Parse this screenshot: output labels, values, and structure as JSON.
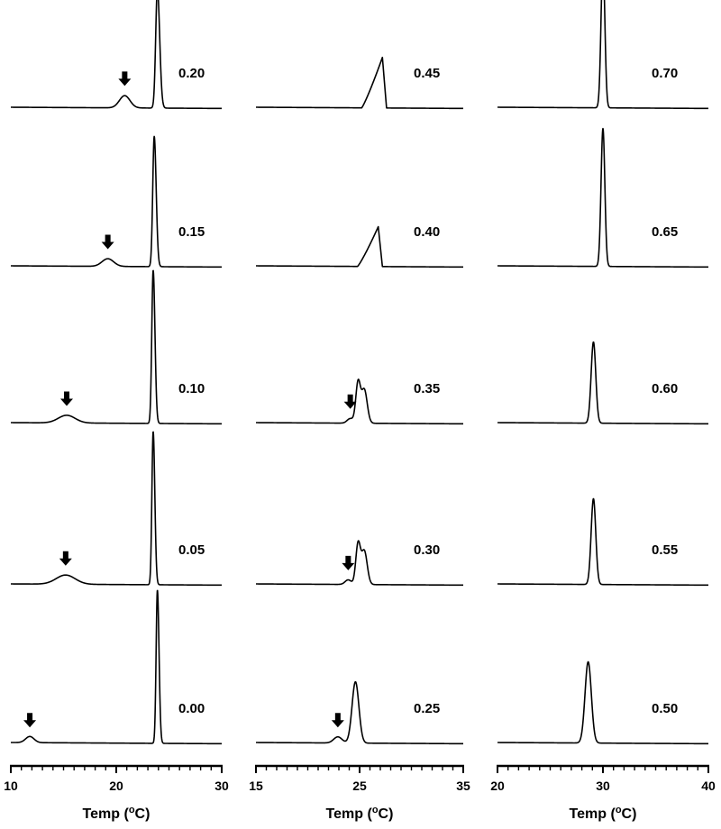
{
  "chart_data": [
    {
      "type": "line",
      "xlabel": "Temp (oC)",
      "xlabel_parts": {
        "prefix": "Temp (",
        "superscript": "o",
        "suffix": "C)"
      },
      "xlim": [
        10,
        30
      ],
      "xticks": [
        "10",
        "20",
        "30"
      ],
      "series": [
        {
          "name": "0.20",
          "peaks": [
            {
              "x": 20.8,
              "height": 0.08,
              "sigma": 0.5
            },
            {
              "x": 23.9,
              "height": 0.78,
              "sigma": 0.16,
              "tail": 0.35
            }
          ],
          "arrow_at": 20.8
        },
        {
          "name": "0.15",
          "peaks": [
            {
              "x": 19.2,
              "height": 0.05,
              "sigma": 0.55
            },
            {
              "x": 23.6,
              "height": 0.85,
              "sigma": 0.14,
              "tail": 0.32
            }
          ],
          "arrow_at": 19.2
        },
        {
          "name": "0.10",
          "peaks": [
            {
              "x": 15.3,
              "height": 0.05,
              "sigma": 0.8
            },
            {
              "x": 23.5,
              "height": 1.0,
              "sigma": 0.13,
              "tail": 0.3
            }
          ],
          "arrow_at": 15.3
        },
        {
          "name": "0.05",
          "peaks": [
            {
              "x": 15.2,
              "height": 0.06,
              "sigma": 0.9
            },
            {
              "x": 23.5,
              "height": 1.0,
              "sigma": 0.12,
              "tail": 0.3
            }
          ],
          "arrow_at": 15.2
        },
        {
          "name": "0.00",
          "peaks": [
            {
              "x": 11.8,
              "height": 0.04,
              "sigma": 0.4
            },
            {
              "x": 23.9,
              "height": 1.0,
              "sigma": 0.12,
              "tail": 0.3
            }
          ],
          "arrow_at": 11.8
        }
      ]
    },
    {
      "type": "line",
      "xlabel": "Temp (oC)",
      "xlabel_parts": {
        "prefix": "Temp (",
        "superscript": "o",
        "suffix": "C)"
      },
      "xlim": [
        15,
        35
      ],
      "xticks": [
        "15",
        "25",
        "35"
      ],
      "series": [
        {
          "name": "0.45",
          "shape": "sawtooth",
          "x0": 25.2,
          "x1": 27.2,
          "x2": 27.6,
          "height": 0.33
        },
        {
          "name": "0.40",
          "shape": "sawtooth",
          "x0": 24.8,
          "x1": 26.8,
          "x2": 27.2,
          "height": 0.26
        },
        {
          "name": "0.35",
          "peaks": [
            {
              "x": 24.1,
              "height": 0.03,
              "sigma": 0.3
            },
            {
              "x": 24.85,
              "height": 0.26,
              "sigma": 0.22
            },
            {
              "x": 25.45,
              "height": 0.22,
              "sigma": 0.28
            }
          ],
          "arrow_at": 24.1
        },
        {
          "name": "0.30",
          "peaks": [
            {
              "x": 23.9,
              "height": 0.03,
              "sigma": 0.3
            },
            {
              "x": 24.85,
              "height": 0.26,
              "sigma": 0.22
            },
            {
              "x": 25.45,
              "height": 0.22,
              "sigma": 0.28
            }
          ],
          "arrow_at": 23.9
        },
        {
          "name": "0.25",
          "peaks": [
            {
              "x": 22.9,
              "height": 0.04,
              "sigma": 0.4
            },
            {
              "x": 24.6,
              "height": 0.4,
              "sigma": 0.33
            }
          ],
          "arrow_at": 22.9
        }
      ]
    },
    {
      "type": "line",
      "xlabel": "Temp (oC)",
      "xlabel_parts": {
        "prefix": "Temp (",
        "superscript": "o",
        "suffix": "C)"
      },
      "xlim": [
        20,
        40
      ],
      "xticks": [
        "20",
        "30",
        "40"
      ],
      "series": [
        {
          "name": "0.70",
          "peaks": [
            {
              "x": 30.0,
              "height": 0.96,
              "sigma": 0.18
            }
          ]
        },
        {
          "name": "0.65",
          "peaks": [
            {
              "x": 30.0,
              "height": 0.9,
              "sigma": 0.18
            }
          ]
        },
        {
          "name": "0.60",
          "peaks": [
            {
              "x": 29.1,
              "height": 0.53,
              "sigma": 0.22
            }
          ]
        },
        {
          "name": "0.55",
          "peaks": [
            {
              "x": 29.1,
              "height": 0.56,
              "sigma": 0.22
            }
          ]
        },
        {
          "name": "0.50",
          "peaks": [
            {
              "x": 28.6,
              "height": 0.53,
              "sigma": 0.3
            }
          ]
        }
      ]
    }
  ]
}
